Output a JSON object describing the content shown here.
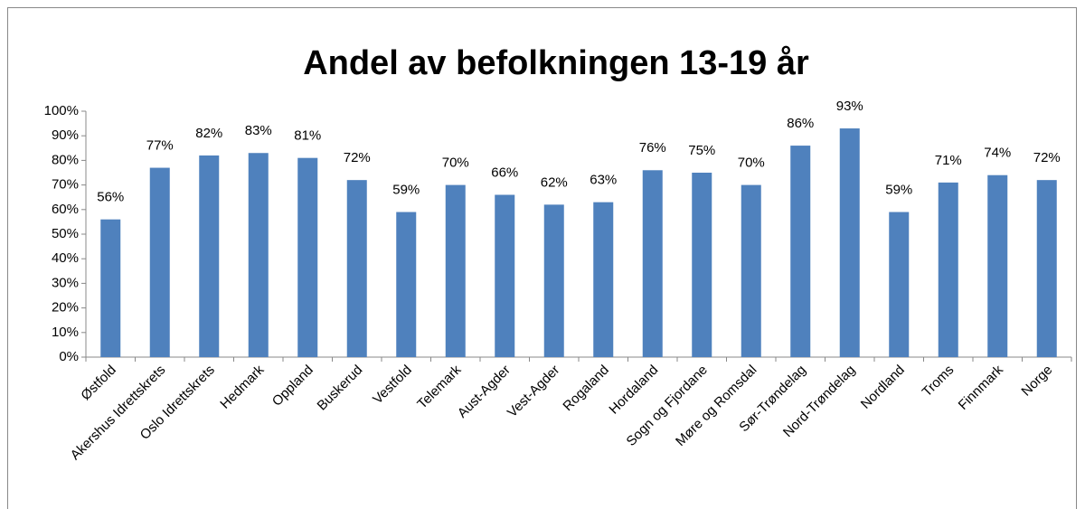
{
  "chart_data": {
    "type": "bar",
    "title": "Andel av befolkningen 13-19 år",
    "categories": [
      "Østfold",
      "Akershus Idrettskrets",
      "Oslo Idrettskrets",
      "Hedmark",
      "Oppland",
      "Buskerud",
      "Vestfold",
      "Telemark",
      "Aust-Agder",
      "Vest-Agder",
      "Rogaland",
      "Hordaland",
      "Sogn og Fjordane",
      "Møre og Romsdal",
      "Sør-Trøndelag",
      "Nord-Trøndelag",
      "Nordland",
      "Troms",
      "Finnmark",
      "Norge"
    ],
    "values": [
      56,
      77,
      82,
      83,
      81,
      72,
      59,
      70,
      66,
      62,
      63,
      76,
      75,
      70,
      86,
      93,
      59,
      71,
      74,
      72
    ],
    "value_labels": [
      "56%",
      "77%",
      "82%",
      "83%",
      "81%",
      "72%",
      "59%",
      "70%",
      "66%",
      "62%",
      "63%",
      "76%",
      "75%",
      "70%",
      "86%",
      "93%",
      "59%",
      "71%",
      "74%",
      "72%"
    ],
    "color": "#4f81bd",
    "ylim": [
      0,
      100
    ],
    "yticks": [
      {
        "value": 0,
        "label": "0%"
      },
      {
        "value": 10,
        "label": "10%"
      },
      {
        "value": 20,
        "label": "20%"
      },
      {
        "value": 30,
        "label": "30%"
      },
      {
        "value": 40,
        "label": "40%"
      },
      {
        "value": 50,
        "label": "50%"
      },
      {
        "value": 60,
        "label": "60%"
      },
      {
        "value": 70,
        "label": "70%"
      },
      {
        "value": 80,
        "label": "80%"
      },
      {
        "value": 90,
        "label": "90%"
      },
      {
        "value": 100,
        "label": "100%"
      }
    ],
    "grid": false
  }
}
